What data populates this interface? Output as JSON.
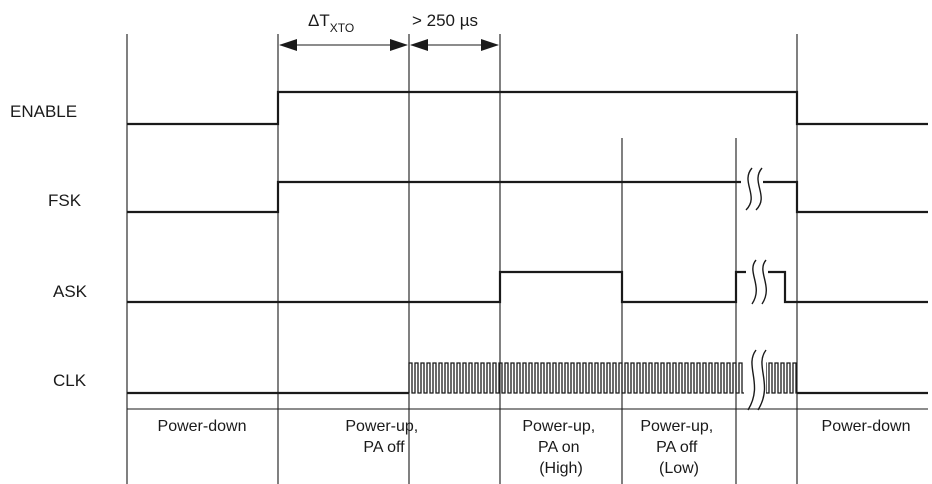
{
  "signals": [
    {
      "id": "enable",
      "label": "ENABLE"
    },
    {
      "id": "fsk",
      "label": "FSK"
    },
    {
      "id": "ask",
      "label": "ASK"
    },
    {
      "id": "clk",
      "label": "CLK"
    }
  ],
  "timing": {
    "t_xto_symbol": "ΔT",
    "t_xto_subscript": "XTO",
    "t_250": "> 250 µs"
  },
  "phases": [
    {
      "id": "power-down-1",
      "lines": [
        "Power-down"
      ]
    },
    {
      "id": "power-up-pa-off",
      "lines": [
        "Power-up,",
        "PA off"
      ]
    },
    {
      "id": "power-up-pa-on-high",
      "lines": [
        "Power-up,",
        "PA on",
        "(High)"
      ]
    },
    {
      "id": "power-up-pa-off-low",
      "lines": [
        "Power-up,",
        "PA off",
        "(Low)"
      ]
    },
    {
      "id": "power-down-2",
      "lines": [
        "Power-down"
      ]
    }
  ]
}
